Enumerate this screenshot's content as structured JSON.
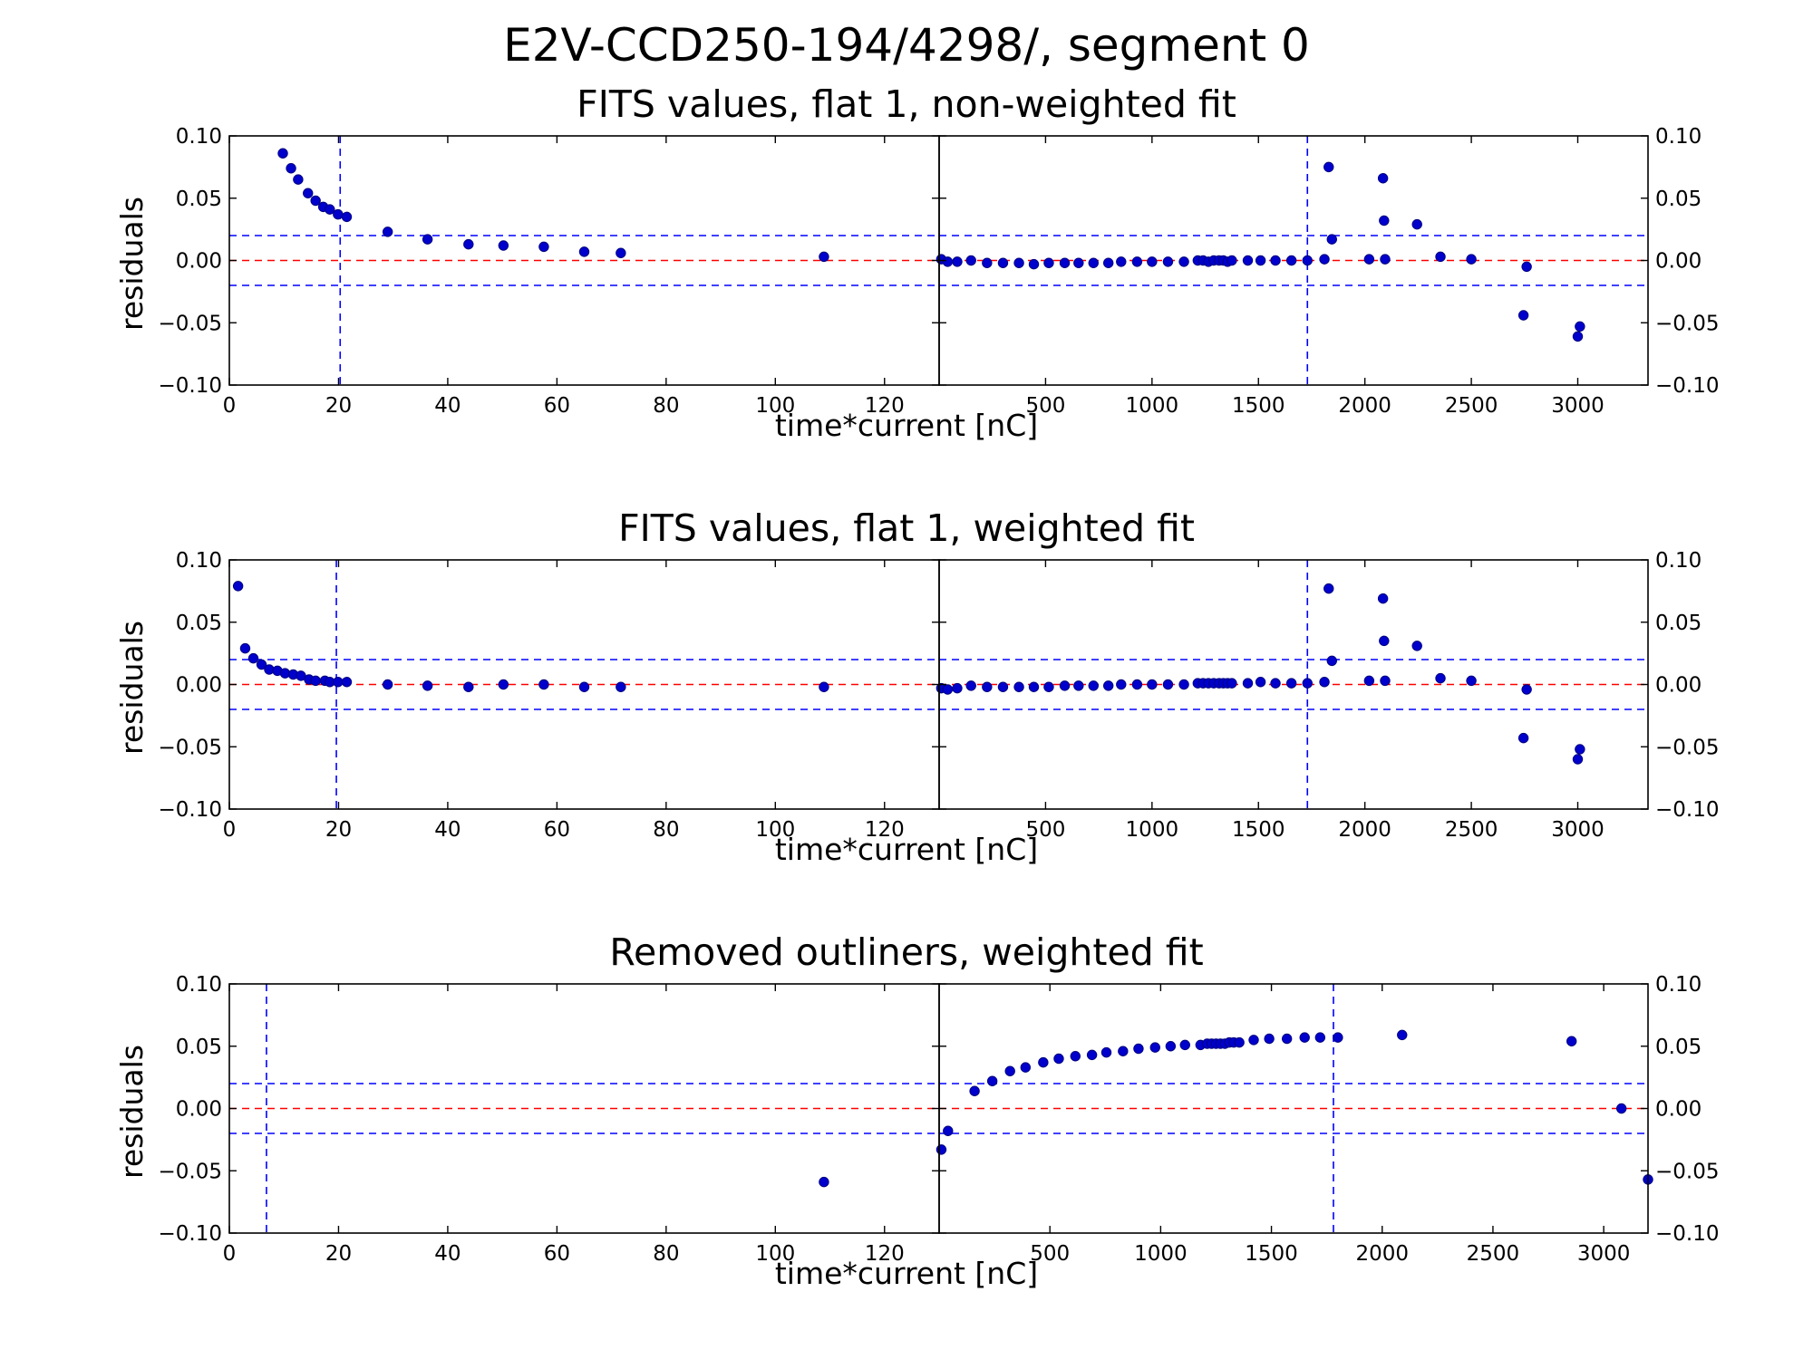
{
  "figure": {
    "title": "E2V-CCD250-194/4298/, segment 0"
  },
  "colors": {
    "point": "#0000cc",
    "point_edge": "#00007f",
    "limit_line": "#0000ff",
    "zero_line": "#ff0000",
    "axes": "#000000"
  },
  "chart_data": [
    {
      "type": "scatter",
      "title": "FITS values, flat 1, non-weighted fit",
      "xlabel": "time*current [nC]",
      "ylabel": "residuals",
      "grid": false,
      "ylim": [
        -0.1,
        0.1
      ],
      "yticks": [
        "0.10",
        "0.05",
        "0.00",
        "−0.05",
        "−0.10"
      ],
      "left": {
        "xlim": [
          0,
          130
        ],
        "xticks": [
          "0",
          "20",
          "40",
          "60",
          "80",
          "100",
          "120"
        ],
        "vline": 20.3,
        "points": [
          [
            9.8,
            0.086
          ],
          [
            11.3,
            0.074
          ],
          [
            12.6,
            0.065
          ],
          [
            14.4,
            0.054
          ],
          [
            15.8,
            0.048
          ],
          [
            17.2,
            0.043
          ],
          [
            18.4,
            0.041
          ],
          [
            19.9,
            0.037
          ],
          [
            21.5,
            0.035
          ],
          [
            29,
            0.023
          ],
          [
            36.3,
            0.017
          ],
          [
            43.8,
            0.013
          ],
          [
            50.2,
            0.012
          ],
          [
            57.6,
            0.011
          ],
          [
            65,
            0.007
          ],
          [
            71.7,
            0.006
          ],
          [
            108.9,
            0.003
          ]
        ]
      },
      "right": {
        "xlim": [
          0,
          3330
        ],
        "xticks": [
          "500",
          "1000",
          "1500",
          "2000",
          "2500",
          "3000"
        ],
        "vline": 1730,
        "points": [
          [
            10,
            0.001
          ],
          [
            40,
            -0.001
          ],
          [
            85,
            -0.001
          ],
          [
            150,
            0
          ],
          [
            225,
            -0.002
          ],
          [
            300,
            -0.002
          ],
          [
            375,
            -0.002
          ],
          [
            445,
            -0.003
          ],
          [
            515,
            -0.002
          ],
          [
            590,
            -0.002
          ],
          [
            655,
            -0.002
          ],
          [
            725,
            -0.002
          ],
          [
            795,
            -0.002
          ],
          [
            855,
            -0.001
          ],
          [
            930,
            -0.001
          ],
          [
            1000,
            -0.001
          ],
          [
            1075,
            -0.001
          ],
          [
            1150,
            -0.001
          ],
          [
            1215,
            0
          ],
          [
            1240,
            0
          ],
          [
            1265,
            -0.001
          ],
          [
            1290,
            0
          ],
          [
            1315,
            0
          ],
          [
            1335,
            0
          ],
          [
            1355,
            -0.001
          ],
          [
            1375,
            0
          ],
          [
            1450,
            0
          ],
          [
            1510,
            0
          ],
          [
            1580,
            0
          ],
          [
            1655,
            0
          ],
          [
            1730,
            0
          ],
          [
            1810,
            0.001
          ],
          [
            1830,
            0.075
          ],
          [
            1845,
            0.017
          ],
          [
            2020,
            0.001
          ],
          [
            2085,
            0.066
          ],
          [
            2090,
            0.032
          ],
          [
            2095,
            0.001
          ],
          [
            2245,
            0.029
          ],
          [
            2355,
            0.003
          ],
          [
            2500,
            0.001
          ],
          [
            2745,
            -0.044
          ],
          [
            2760,
            -0.005
          ],
          [
            3000,
            -0.061
          ],
          [
            3010,
            -0.053
          ]
        ]
      }
    },
    {
      "type": "scatter",
      "title": "FITS values, flat 1, weighted fit",
      "xlabel": "time*current [nC]",
      "ylabel": "residuals",
      "grid": false,
      "ylim": [
        -0.1,
        0.1
      ],
      "yticks": [
        "0.10",
        "0.05",
        "0.00",
        "−0.05",
        "−0.10"
      ],
      "left": {
        "xlim": [
          0,
          130
        ],
        "xticks": [
          "0",
          "20",
          "40",
          "60",
          "80",
          "100",
          "120"
        ],
        "vline": 19.6,
        "points": [
          [
            1.6,
            0.079
          ],
          [
            2.9,
            0.029
          ],
          [
            4.4,
            0.021
          ],
          [
            5.9,
            0.016
          ],
          [
            7.3,
            0.012
          ],
          [
            8.8,
            0.011
          ],
          [
            10.2,
            0.009
          ],
          [
            11.7,
            0.008
          ],
          [
            13.1,
            0.007
          ],
          [
            14.6,
            0.004
          ],
          [
            15.8,
            0.003
          ],
          [
            17.5,
            0.003
          ],
          [
            18.4,
            0.002
          ],
          [
            19.9,
            0.002
          ],
          [
            21.5,
            0.002
          ],
          [
            29,
            0
          ],
          [
            36.3,
            -0.001
          ],
          [
            43.8,
            -0.002
          ],
          [
            50.2,
            0
          ],
          [
            57.6,
            0
          ],
          [
            65,
            -0.002
          ],
          [
            71.7,
            -0.002
          ],
          [
            108.9,
            -0.002
          ]
        ]
      },
      "right": {
        "xlim": [
          0,
          3330
        ],
        "xticks": [
          "500",
          "1000",
          "1500",
          "2000",
          "2500",
          "3000"
        ],
        "vline": 1730,
        "points": [
          [
            10,
            -0.003
          ],
          [
            40,
            -0.004
          ],
          [
            85,
            -0.003
          ],
          [
            150,
            -0.001
          ],
          [
            225,
            -0.002
          ],
          [
            300,
            -0.002
          ],
          [
            375,
            -0.002
          ],
          [
            445,
            -0.002
          ],
          [
            515,
            -0.002
          ],
          [
            590,
            -0.001
          ],
          [
            655,
            -0.001
          ],
          [
            725,
            -0.001
          ],
          [
            795,
            -0.001
          ],
          [
            855,
            0
          ],
          [
            930,
            0
          ],
          [
            1000,
            0
          ],
          [
            1075,
            0
          ],
          [
            1150,
            0
          ],
          [
            1215,
            0.001
          ],
          [
            1240,
            0.001
          ],
          [
            1265,
            0.001
          ],
          [
            1290,
            0.001
          ],
          [
            1315,
            0.001
          ],
          [
            1335,
            0.001
          ],
          [
            1355,
            0.001
          ],
          [
            1375,
            0.001
          ],
          [
            1450,
            0.001
          ],
          [
            1510,
            0.002
          ],
          [
            1580,
            0.001
          ],
          [
            1655,
            0.001
          ],
          [
            1730,
            0.001
          ],
          [
            1810,
            0.002
          ],
          [
            1830,
            0.077
          ],
          [
            1845,
            0.019
          ],
          [
            2020,
            0.003
          ],
          [
            2085,
            0.069
          ],
          [
            2090,
            0.035
          ],
          [
            2095,
            0.003
          ],
          [
            2245,
            0.031
          ],
          [
            2355,
            0.005
          ],
          [
            2500,
            0.003
          ],
          [
            2745,
            -0.043
          ],
          [
            2760,
            -0.004
          ],
          [
            3000,
            -0.06
          ],
          [
            3010,
            -0.052
          ]
        ]
      }
    },
    {
      "type": "scatter",
      "title": "Removed outliners, weighted fit",
      "xlabel": "time*current [nC]",
      "ylabel": "residuals",
      "grid": false,
      "ylim": [
        -0.1,
        0.1
      ],
      "yticks": [
        "0.10",
        "0.05",
        "0.00",
        "−0.05",
        "−0.10"
      ],
      "left": {
        "xlim": [
          0,
          130
        ],
        "xticks": [
          "0",
          "20",
          "40",
          "60",
          "80",
          "100",
          "120"
        ],
        "vline": 6.8,
        "points": [
          [
            108.9,
            -0.059
          ]
        ]
      },
      "right": {
        "xlim": [
          0,
          3200
        ],
        "xticks": [
          "500",
          "1000",
          "1500",
          "2000",
          "2500",
          "3000"
        ],
        "vline": 1780,
        "points": [
          [
            10,
            -0.033
          ],
          [
            40,
            -0.018
          ],
          [
            160,
            0.014
          ],
          [
            240,
            0.022
          ],
          [
            320,
            0.03
          ],
          [
            390,
            0.033
          ],
          [
            470,
            0.037
          ],
          [
            540,
            0.04
          ],
          [
            615,
            0.042
          ],
          [
            690,
            0.043
          ],
          [
            755,
            0.045
          ],
          [
            830,
            0.046
          ],
          [
            900,
            0.048
          ],
          [
            975,
            0.049
          ],
          [
            1045,
            0.05
          ],
          [
            1110,
            0.051
          ],
          [
            1180,
            0.051
          ],
          [
            1210,
            0.052
          ],
          [
            1230,
            0.052
          ],
          [
            1250,
            0.052
          ],
          [
            1270,
            0.052
          ],
          [
            1290,
            0.052
          ],
          [
            1310,
            0.053
          ],
          [
            1330,
            0.053
          ],
          [
            1355,
            0.053
          ],
          [
            1420,
            0.055
          ],
          [
            1490,
            0.056
          ],
          [
            1570,
            0.056
          ],
          [
            1650,
            0.057
          ],
          [
            1720,
            0.057
          ],
          [
            1800,
            0.057
          ],
          [
            2090,
            0.059
          ],
          [
            2855,
            0.054
          ],
          [
            3080,
            0
          ],
          [
            3200,
            -0.057
          ]
        ]
      }
    }
  ]
}
